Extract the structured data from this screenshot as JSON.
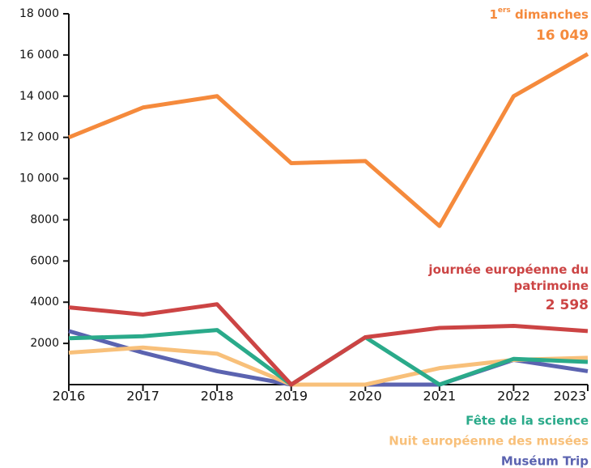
{
  "chart_data": {
    "type": "line",
    "x": [
      2016,
      2017,
      2018,
      2019,
      2020,
      2021,
      2022,
      2023
    ],
    "xlim": [
      2016,
      2023
    ],
    "xticks": [
      2016,
      2017,
      2018,
      2019,
      2020,
      2021,
      2022,
      2023
    ],
    "ylim": [
      0,
      18000
    ],
    "yticks": [
      {
        "value": 2000,
        "label": "2000"
      },
      4000,
      6000,
      8000,
      {
        "value": 10000,
        "label": "10 000"
      },
      {
        "value": 12000,
        "label": "12 000"
      },
      {
        "value": 14000,
        "label": "14 000"
      },
      {
        "value": 16000,
        "label": "16 000"
      },
      {
        "value": 18000,
        "label": "18 000"
      }
    ],
    "grid": false,
    "series": [
      {
        "name": "1ers dimanches",
        "color": "#f58a3c",
        "values": [
          12000,
          13450,
          14000,
          10750,
          10850,
          7700,
          14000,
          16049
        ],
        "value_labels": [
          null,
          null,
          null,
          null,
          null,
          null,
          null,
          "16 049"
        ]
      },
      {
        "name": "journée européenne du patrimoine",
        "color": "#cc4444",
        "values": [
          3750,
          3400,
          3900,
          0,
          2300,
          2750,
          2850,
          2598
        ],
        "value_labels": [
          null,
          null,
          null,
          null,
          null,
          null,
          null,
          "2 598"
        ]
      },
      {
        "name": "Fête de la science",
        "color": "#2aaa8a",
        "values": [
          2250,
          2350,
          2650,
          0,
          2300,
          0,
          1250,
          1100
        ]
      },
      {
        "name": "Nuit européenne des musées",
        "color": "#f8c07a",
        "values": [
          1550,
          1800,
          1500,
          0,
          0,
          800,
          1200,
          1300
        ]
      },
      {
        "name": "Muséum Trip",
        "color": "#5b63b0",
        "values": [
          2600,
          1550,
          650,
          0,
          0,
          0,
          1200,
          650
        ]
      }
    ]
  }
}
